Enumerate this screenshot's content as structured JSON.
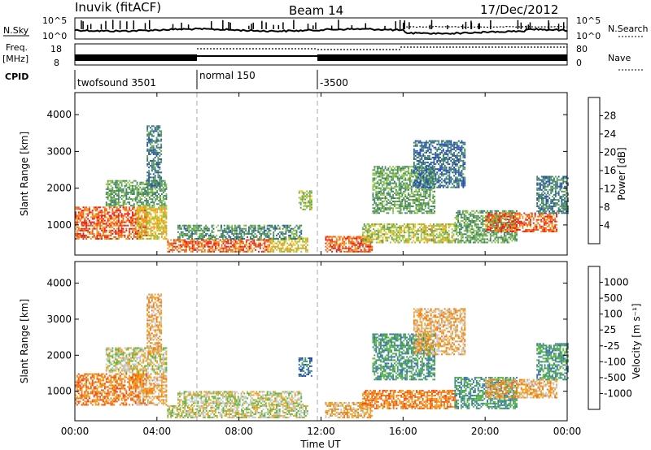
{
  "header": {
    "station": "Inuvik (fitACF)",
    "beam": "Beam 14",
    "date": "17/Dec/2012"
  },
  "summary": {
    "nsky_label": "N.Sky",
    "nsearch_label": "N.Search",
    "nsky_ticks": [
      "10^5",
      "10^0"
    ],
    "nsearch_ticks": [
      "10^5",
      "10^0"
    ],
    "freq_label_1": "Freq.",
    "freq_label_2": "[MHz]",
    "freq_ticks": [
      "18",
      "8"
    ],
    "nave_label": "Nave",
    "nave_ticks": [
      "80",
      "0"
    ],
    "cpid_label": "CPID",
    "cpid_segments": [
      {
        "name": "twofsound 3501",
        "start_hour": 0,
        "end_hour": 6
      },
      {
        "name": "normal 150",
        "start_hour": 6,
        "end_hour": 12
      },
      {
        "name": "-3500",
        "start_hour": 12,
        "end_hour": 24
      }
    ]
  },
  "chart_data": [
    {
      "type": "heatmap",
      "title": "",
      "xlabel": "Time UT",
      "ylabel": "Slant Range [km]",
      "xlim": [
        0,
        24
      ],
      "ylim": [
        180,
        4600
      ],
      "xticks": [
        "00:00",
        "04:00",
        "08:00",
        "12:00",
        "16:00",
        "20:00",
        "00:00"
      ],
      "yticks": [
        1000,
        2000,
        3000,
        4000
      ],
      "colorbar": {
        "label": "Power [dB]",
        "ticks": [
          4,
          8,
          12,
          16,
          20,
          24,
          28
        ],
        "range": [
          0,
          32
        ],
        "colors": [
          "#1f3fe0",
          "#2a54a8",
          "#3a7f6a",
          "#5c9c5a",
          "#8cc441",
          "#f2c21a",
          "#f3951a",
          "#ef5a13",
          "#e41a1a"
        ]
      },
      "regions": [
        {
          "t0": 0.0,
          "t1": 3.5,
          "r0": 600,
          "r1": 1500,
          "level": 28
        },
        {
          "t0": 3.0,
          "t1": 4.5,
          "r0": 600,
          "r1": 1500,
          "level": 20
        },
        {
          "t0": 1.5,
          "t1": 4.5,
          "r0": 1500,
          "r1": 2200,
          "level": 12
        },
        {
          "t0": 3.5,
          "t1": 4.2,
          "r0": 2000,
          "r1": 3700,
          "level": 8
        },
        {
          "t0": 4.5,
          "t1": 9.5,
          "r0": 250,
          "r1": 600,
          "level": 28
        },
        {
          "t0": 9.5,
          "t1": 11.3,
          "r0": 250,
          "r1": 650,
          "level": 20
        },
        {
          "t0": 5.0,
          "t1": 11.0,
          "r0": 600,
          "r1": 1000,
          "level": 10
        },
        {
          "t0": 10.9,
          "t1": 11.5,
          "r0": 1400,
          "r1": 1900,
          "level": 16
        },
        {
          "t0": 12.2,
          "t1": 14.5,
          "r0": 250,
          "r1": 700,
          "level": 28
        },
        {
          "t0": 14.0,
          "t1": 15.5,
          "r0": 500,
          "r1": 1000,
          "level": 16
        },
        {
          "t0": 14.5,
          "t1": 17.5,
          "r0": 1300,
          "r1": 2600,
          "level": 12
        },
        {
          "t0": 15.5,
          "t1": 18.5,
          "r0": 500,
          "r1": 1000,
          "level": 18
        },
        {
          "t0": 16.5,
          "t1": 19.0,
          "r0": 2000,
          "r1": 3300,
          "level": 6
        },
        {
          "t0": 18.5,
          "t1": 21.5,
          "r0": 500,
          "r1": 1400,
          "level": 12
        },
        {
          "t0": 20.0,
          "t1": 23.5,
          "r0": 800,
          "r1": 1300,
          "level": 28
        },
        {
          "t0": 22.5,
          "t1": 24.0,
          "r0": 1300,
          "r1": 2300,
          "level": 8
        }
      ]
    },
    {
      "type": "heatmap",
      "title": "",
      "xlabel": "Time UT",
      "ylabel": "Slant Range [km]",
      "xlim": [
        0,
        24
      ],
      "ylim": [
        180,
        4600
      ],
      "xticks": [
        "00:00",
        "04:00",
        "08:00",
        "12:00",
        "16:00",
        "20:00",
        "00:00"
      ],
      "yticks": [
        1000,
        2000,
        3000,
        4000
      ],
      "colorbar": {
        "label": "Velocity [m s⁻¹]",
        "ticks": [
          "1000",
          "500",
          "100",
          "25",
          "-25",
          "-100",
          "-500",
          "-1000"
        ],
        "colors": [
          "#1e3fa8",
          "#3b6fb0",
          "#3f9a6a",
          "#5cb83a",
          "#c8c8c8",
          "#f0a21e",
          "#f07a14",
          "#ee4a12",
          "#e0181a"
        ]
      },
      "regions": [
        {
          "t0": 0.0,
          "t1": 3.5,
          "r0": 600,
          "r1": 1500,
          "level": -500
        },
        {
          "t0": 3.0,
          "t1": 4.5,
          "r0": 600,
          "r1": 1500,
          "level": -100
        },
        {
          "t0": 1.5,
          "t1": 4.5,
          "r0": 1500,
          "r1": 2200,
          "level": 0
        },
        {
          "t0": 3.5,
          "t1": 4.2,
          "r0": 2000,
          "r1": 3700,
          "level": -100
        },
        {
          "t0": 4.5,
          "t1": 9.5,
          "r0": 250,
          "r1": 600,
          "level": 0
        },
        {
          "t0": 9.5,
          "t1": 11.3,
          "r0": 250,
          "r1": 650,
          "level": 0
        },
        {
          "t0": 5.0,
          "t1": 11.0,
          "r0": 600,
          "r1": 1000,
          "level": 0
        },
        {
          "t0": 10.9,
          "t1": 11.5,
          "r0": 1400,
          "r1": 1900,
          "level": 500
        },
        {
          "t0": 12.2,
          "t1": 14.5,
          "r0": 250,
          "r1": 700,
          "level": -100
        },
        {
          "t0": 14.0,
          "t1": 15.5,
          "r0": 500,
          "r1": 1000,
          "level": -500
        },
        {
          "t0": 14.5,
          "t1": 17.5,
          "r0": 1300,
          "r1": 2600,
          "level": 100
        },
        {
          "t0": 15.5,
          "t1": 18.5,
          "r0": 500,
          "r1": 1000,
          "level": -500
        },
        {
          "t0": 16.5,
          "t1": 19.0,
          "r0": 2000,
          "r1": 3300,
          "level": -100
        },
        {
          "t0": 18.5,
          "t1": 21.5,
          "r0": 500,
          "r1": 1400,
          "level": 100
        },
        {
          "t0": 20.0,
          "t1": 23.5,
          "r0": 800,
          "r1": 1300,
          "level": -100
        },
        {
          "t0": 22.5,
          "t1": 24.0,
          "r0": 1300,
          "r1": 2300,
          "level": 100
        }
      ]
    }
  ]
}
